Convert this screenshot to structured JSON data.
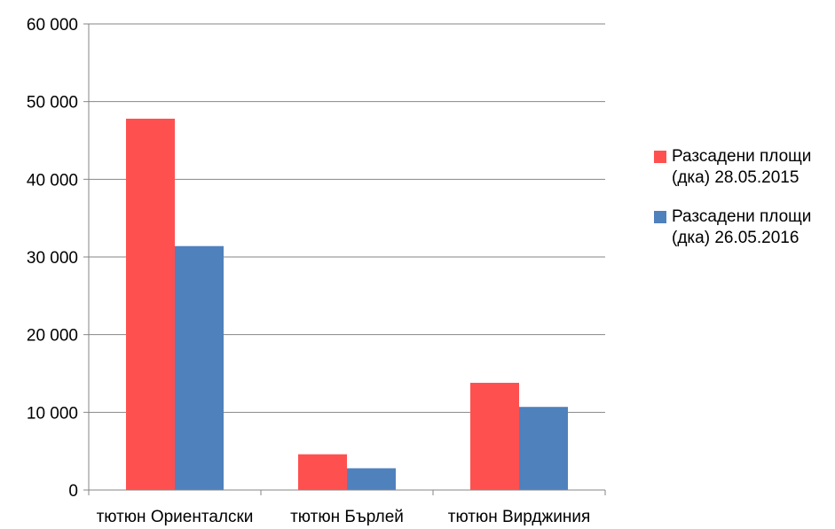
{
  "chart_data": {
    "type": "bar",
    "categories": [
      "тютюн Ориенталски",
      "тютюн Бърлей",
      "тютюн Вирджиния"
    ],
    "series": [
      {
        "name": "Разсадени площи (дка) 28.05.2015",
        "values": [
          47800,
          4600,
          13800
        ],
        "color": "#ff5050"
      },
      {
        "name": "Разсадени площи (дка) 26.05.2016",
        "values": [
          31400,
          2800,
          10700
        ],
        "color": "#4f81bd"
      }
    ],
    "ylim": [
      0,
      60000
    ],
    "yticks": [
      0,
      10000,
      20000,
      30000,
      40000,
      50000,
      60000
    ],
    "ytick_labels": [
      "0",
      "10 000",
      "20 000",
      "30 000",
      "40 000",
      "50 000",
      "60 000"
    ],
    "grid": true,
    "legend_position": "right",
    "title": "",
    "xlabel": "",
    "ylabel": ""
  }
}
